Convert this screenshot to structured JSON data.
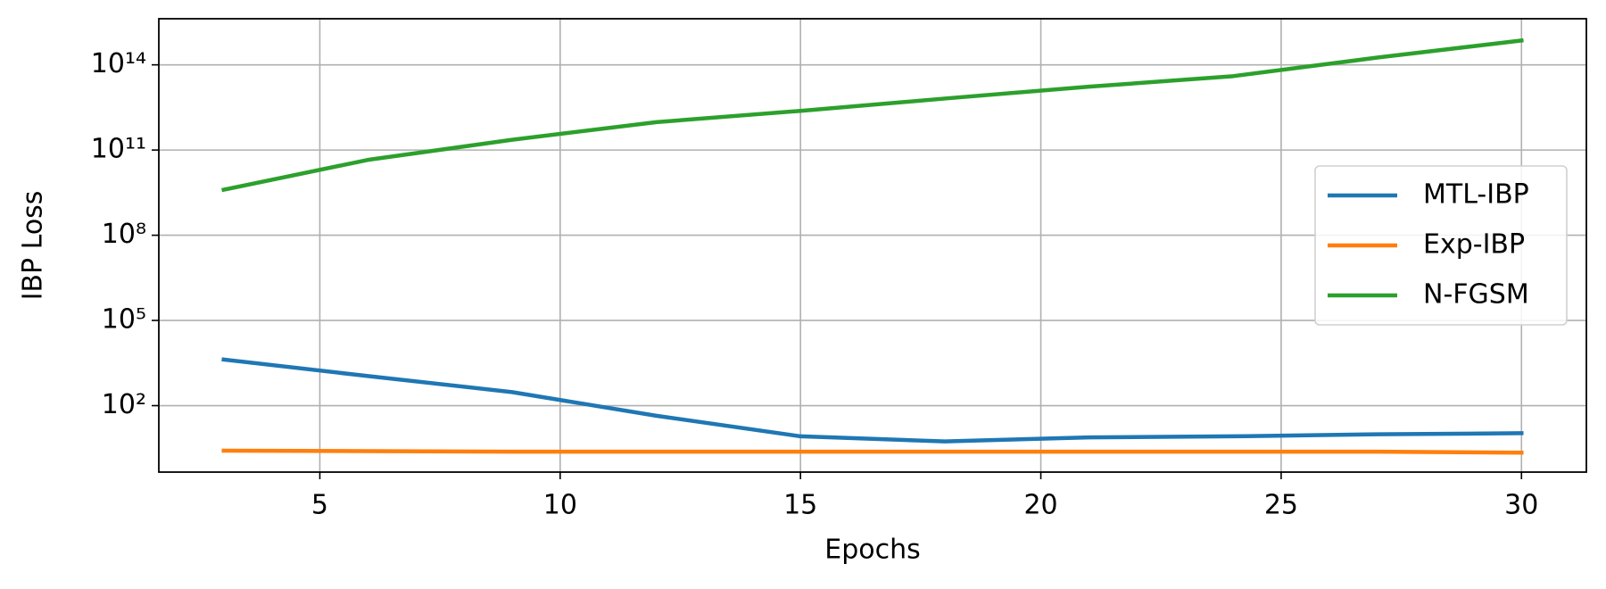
{
  "chart_data": {
    "type": "line",
    "x_label": "Epochs",
    "y_label": "IBP Loss",
    "x": [
      3,
      6,
      9,
      12,
      15,
      18,
      21,
      24,
      27,
      30
    ],
    "series": [
      {
        "name": "MTL-IBP",
        "color": "#1f77b4",
        "values": [
          4200,
          1100,
          300,
          44,
          8.3,
          5.5,
          7.6,
          8.3,
          9.8,
          10.7
        ]
      },
      {
        "name": "Exp-IBP",
        "color": "#ff7f0e",
        "values": [
          2.6,
          2.5,
          2.4,
          2.4,
          2.4,
          2.4,
          2.4,
          2.4,
          2.4,
          2.2
        ]
      },
      {
        "name": "N-FGSM",
        "color": "#2ca02c",
        "values": [
          4000000000,
          45000000000,
          230000000000,
          960000000000,
          2400000000000,
          6500000000000,
          17000000000000,
          40000000000000,
          180000000000000,
          720000000000000
        ]
      }
    ],
    "xlim": [
      1.65,
      31.35
    ],
    "xticks": [
      5,
      10,
      15,
      20,
      25,
      30
    ],
    "ylim": [
      0.457,
      4200000000000000
    ],
    "ylog": true,
    "yticks": [
      {
        "value": 100,
        "label": "10²"
      },
      {
        "value": 100000,
        "label": "10⁵"
      },
      {
        "value": 100000000,
        "label": "10⁸"
      },
      {
        "value": 100000000000,
        "label": "10¹¹"
      },
      {
        "value": 100000000000000,
        "label": "10¹⁴"
      }
    ],
    "grid": true,
    "legend": "center right"
  }
}
